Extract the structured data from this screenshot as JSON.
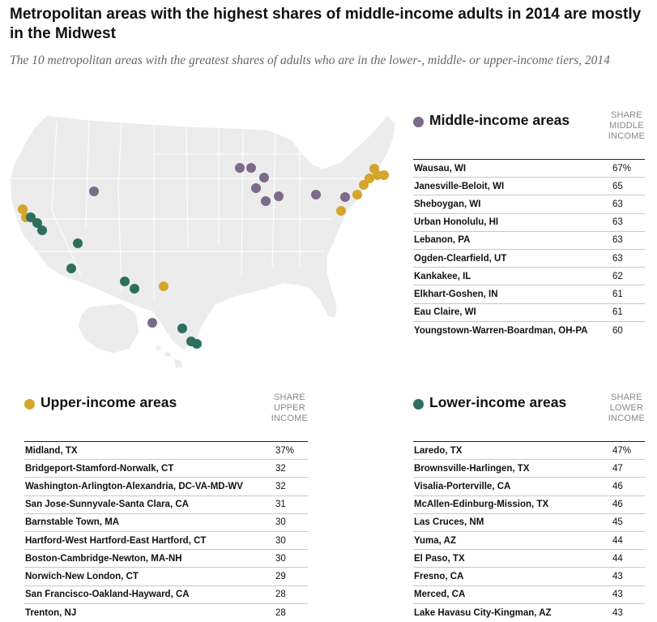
{
  "title": "Metropolitan areas with the highest shares of middle-income adults in 2014 are mostly in the Midwest",
  "subtitle": "The 10 metropolitan areas with the greatest shares of adults who are in the lower-, middle- or upper-income tiers, 2014",
  "colors": {
    "middle": "#7b6a8a",
    "upper": "#d4a52a",
    "lower": "#2e6e5f",
    "land": "#ececec",
    "border": "#ffffff"
  },
  "middle": {
    "title": "Middle-income areas",
    "col_head": [
      "SHARE",
      "MIDDLE",
      "INCOME"
    ],
    "rows": [
      {
        "name": "Wausau, WI",
        "value": "67%"
      },
      {
        "name": "Janesville-Beloit, WI",
        "value": "65"
      },
      {
        "name": "Sheboygan, WI",
        "value": "63"
      },
      {
        "name": "Urban Honolulu, HI",
        "value": "63"
      },
      {
        "name": "Lebanon, PA",
        "value": "63"
      },
      {
        "name": "Ogden-Clearfield, UT",
        "value": "63"
      },
      {
        "name": "Kankakee, IL",
        "value": "62"
      },
      {
        "name": "Elkhart-Goshen, IN",
        "value": "61"
      },
      {
        "name": "Eau Claire, WI",
        "value": "61"
      },
      {
        "name": "Youngstown-Warren-Boardman, OH-PA",
        "value": "60"
      }
    ]
  },
  "upper": {
    "title": "Upper-income areas",
    "col_head": [
      "SHARE",
      "UPPER",
      "INCOME"
    ],
    "rows": [
      {
        "name": "Midland, TX",
        "value": "37%"
      },
      {
        "name": "Bridgeport-Stamford-Norwalk, CT",
        "value": "32"
      },
      {
        "name": "Washington-Arlington-Alexandria, DC-VA-MD-WV",
        "value": "32"
      },
      {
        "name": "San Jose-Sunnyvale-Santa Clara, CA",
        "value": "31"
      },
      {
        "name": "Barnstable Town, MA",
        "value": "30"
      },
      {
        "name": "Hartford-West Hartford-East Hartford, CT",
        "value": "30"
      },
      {
        "name": "Boston-Cambridge-Newton, MA-NH",
        "value": "30"
      },
      {
        "name": "Norwich-New London, CT",
        "value": "29"
      },
      {
        "name": "San Francisco-Oakland-Hayward, CA",
        "value": "28"
      },
      {
        "name": "Trenton, NJ",
        "value": "28"
      }
    ]
  },
  "lower": {
    "title": "Lower-income areas",
    "col_head": [
      "SHARE",
      "LOWER",
      "INCOME"
    ],
    "rows": [
      {
        "name": "Laredo, TX",
        "value": "47%"
      },
      {
        "name": "Brownsville-Harlingen, TX",
        "value": "47"
      },
      {
        "name": "Visalia-Porterville, CA",
        "value": "46"
      },
      {
        "name": "McAllen-Edinburg-Mission, TX",
        "value": "46"
      },
      {
        "name": "Las Cruces, NM",
        "value": "45"
      },
      {
        "name": "Yuma, AZ",
        "value": "44"
      },
      {
        "name": "El Paso, TX",
        "value": "44"
      },
      {
        "name": "Fresno, CA",
        "value": "43"
      },
      {
        "name": "Merced, CA",
        "value": "43"
      },
      {
        "name": "Lake Havasu City-Kingman, AZ",
        "value": "43"
      }
    ]
  }
}
